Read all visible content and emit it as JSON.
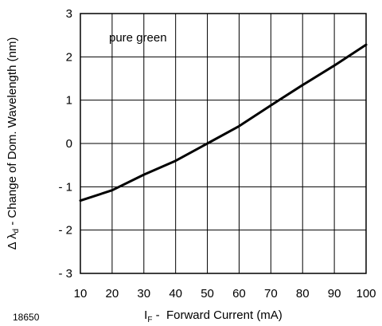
{
  "chart_data": {
    "type": "line",
    "title": "",
    "annotation": "pure green",
    "figure_id": "18650",
    "xlabel": {
      "symbol": "I",
      "subscript": "F",
      "text": " -  Forward Current (mA)"
    },
    "ylabel": {
      "symbol": "Δ λ",
      "subscript": "d",
      "text": " - Change of Dom. Wavelength (nm)"
    },
    "xlim": [
      10,
      100
    ],
    "ylim": [
      -3,
      3
    ],
    "x_ticks": [
      10,
      20,
      30,
      40,
      50,
      60,
      70,
      80,
      90,
      100
    ],
    "x_tick_labels": [
      "10",
      "20",
      "30",
      "40",
      "50",
      "60",
      "70",
      "80",
      "90",
      "100"
    ],
    "y_ticks": [
      3,
      2,
      1,
      0,
      -1,
      -2,
      -3
    ],
    "y_tick_labels": [
      "3",
      "2",
      "1",
      "0",
      "- 1",
      "- 2",
      "- 3"
    ],
    "grid": true,
    "series": [
      {
        "x": [
          10,
          20,
          30,
          40,
          50,
          60,
          70,
          80,
          90,
          100
        ],
        "y": [
          -1.32,
          -1.08,
          -0.72,
          -0.4,
          0.0,
          0.4,
          0.88,
          1.35,
          1.8,
          2.28
        ]
      }
    ],
    "line_color": "#000000"
  }
}
